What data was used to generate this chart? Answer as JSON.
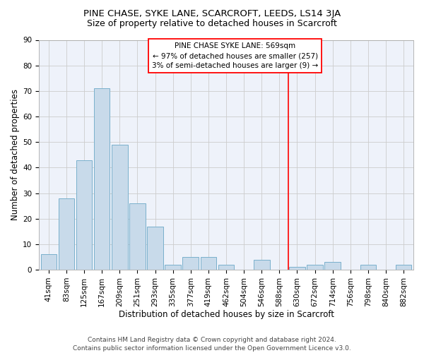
{
  "title": "PINE CHASE, SYKE LANE, SCARCROFT, LEEDS, LS14 3JA",
  "subtitle": "Size of property relative to detached houses in Scarcroft",
  "xlabel": "Distribution of detached houses by size in Scarcroft",
  "ylabel": "Number of detached properties",
  "categories": [
    "41sqm",
    "83sqm",
    "125sqm",
    "167sqm",
    "209sqm",
    "251sqm",
    "293sqm",
    "335sqm",
    "377sqm",
    "419sqm",
    "462sqm",
    "504sqm",
    "546sqm",
    "588sqm",
    "630sqm",
    "672sqm",
    "714sqm",
    "756sqm",
    "798sqm",
    "840sqm",
    "882sqm"
  ],
  "values": [
    6,
    28,
    43,
    71,
    49,
    26,
    17,
    2,
    5,
    5,
    2,
    0,
    4,
    0,
    1,
    2,
    3,
    0,
    2,
    0,
    2
  ],
  "bar_color": "#c8daea",
  "bar_edge_color": "#7ab0cc",
  "grid_color": "#cccccc",
  "bg_color": "#eef2fa",
  "vline_x_index": 13.5,
  "vline_color": "red",
  "annotation_text": "PINE CHASE SYKE LANE: 569sqm\n← 97% of detached houses are smaller (257)\n3% of semi-detached houses are larger (9) →",
  "annotation_box_color": "red",
  "ylim": [
    0,
    90
  ],
  "yticks": [
    0,
    10,
    20,
    30,
    40,
    50,
    60,
    70,
    80,
    90
  ],
  "footer": "Contains HM Land Registry data © Crown copyright and database right 2024.\nContains public sector information licensed under the Open Government Licence v3.0.",
  "title_fontsize": 9.5,
  "subtitle_fontsize": 9,
  "xlabel_fontsize": 8.5,
  "ylabel_fontsize": 8.5,
  "tick_fontsize": 7.5,
  "annotation_fontsize": 7.5,
  "footer_fontsize": 6.5
}
